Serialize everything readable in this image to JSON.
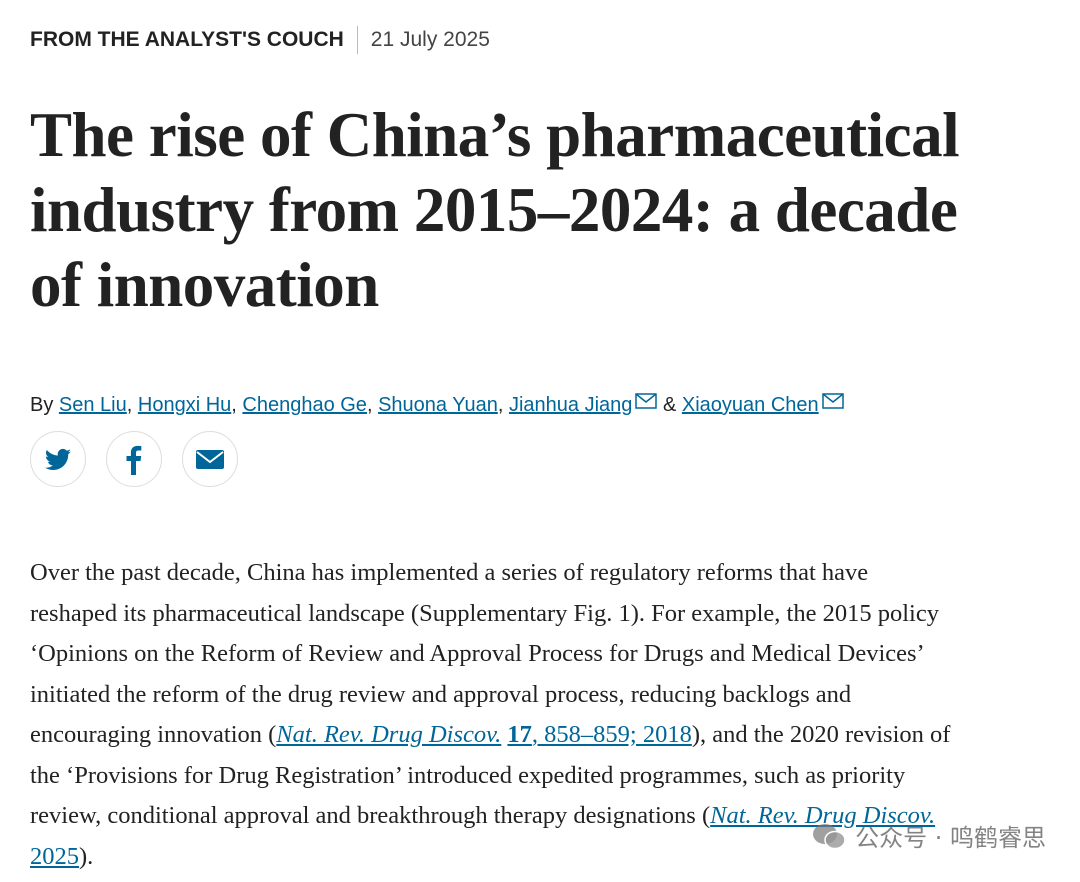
{
  "header": {
    "section": "FROM THE ANALYST'S COUCH",
    "date": "21 July 2025"
  },
  "title_lines": [
    "The rise of China’s pharmaceutical",
    "industry from 2015–2024: a decade",
    "of innovation"
  ],
  "byline": {
    "prefix": "By",
    "authors": [
      {
        "name": "Sen Liu",
        "after": ","
      },
      {
        "name": "Hongxi Hu",
        "after": ","
      },
      {
        "name": "Chenghao Ge",
        "after": ","
      },
      {
        "name": "Shuona Yuan",
        "after": ","
      },
      {
        "name": "Jianhua Jiang",
        "after": "&",
        "email": true
      },
      {
        "name": "Xiaoyuan Chen",
        "email": true
      }
    ]
  },
  "paragraph_lines": [
    [
      {
        "text": "Over the past decade, China has implemented a series of regulatory reforms that have",
        "style": "plain"
      }
    ],
    [
      {
        "text": "reshaped its pharmaceutical landscape (Supplementary Fig. 1). For example, the 2015 policy",
        "style": "plain"
      }
    ],
    [
      {
        "text": "‘Opinions on the Reform of Review and Approval Process for Drugs and Medical Devices’",
        "style": "plain"
      }
    ],
    [
      {
        "text": "initiated the reform of the drug review and approval process, reducing backlogs and",
        "style": "plain"
      }
    ],
    [
      {
        "text": "encouraging innovation (",
        "style": "plain"
      },
      {
        "text": "Nat. Rev. Drug Discov.",
        "style": "link-italic"
      },
      {
        "text": "17",
        "style": "link-bold"
      },
      {
        "text": ", 858–859; 2018",
        "style": "link"
      },
      {
        "text": "), and the 2020 revision of",
        "style": "plain"
      }
    ],
    [
      {
        "text": "the ‘Provisions for Drug Registration’ introduced expedited programmes, such as priority",
        "style": "plain"
      }
    ],
    [
      {
        "text": "review, conditional approval and breakthrough therapy designations (",
        "style": "plain"
      },
      {
        "text": "Nat. Rev. Drug Discov.",
        "style": "link-italic"
      }
    ],
    [
      {
        "text": "2025",
        "style": "link"
      },
      {
        "text": ").",
        "style": "plain"
      }
    ]
  ],
  "watermark": "公众号 · 鸣鹤睿思"
}
